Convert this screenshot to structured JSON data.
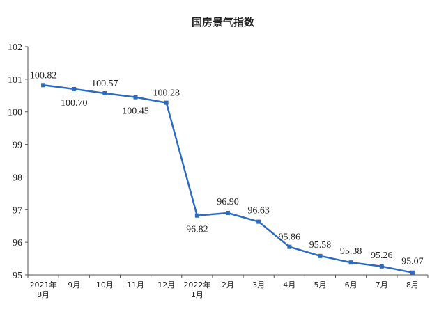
{
  "chart_data": {
    "type": "line",
    "title": "国房景气指数",
    "categories": [
      [
        "2021年",
        "8月"
      ],
      [
        "9月"
      ],
      [
        "10月"
      ],
      [
        "11月"
      ],
      [
        "12月"
      ],
      [
        "2022年",
        "1月"
      ],
      [
        "2月"
      ],
      [
        "3月"
      ],
      [
        "4月"
      ],
      [
        "5月"
      ],
      [
        "6月"
      ],
      [
        "7月"
      ],
      [
        "8月"
      ]
    ],
    "values": [
      100.82,
      100.7,
      100.57,
      100.45,
      100.28,
      96.82,
      96.9,
      96.63,
      95.86,
      95.58,
      95.38,
      95.26,
      95.07
    ],
    "data_labels": [
      "100.82",
      "100.70",
      "100.57",
      "100.45",
      "100.28",
      "96.82",
      "96.90",
      "96.63",
      "95.86",
      "95.58",
      "95.38",
      "95.26",
      "95.07"
    ],
    "yticks": [
      95,
      96,
      97,
      98,
      99,
      100,
      101,
      102
    ],
    "ylim": [
      95,
      102
    ],
    "grid": false,
    "legend": "none",
    "line_color": "#2e6bbd"
  }
}
